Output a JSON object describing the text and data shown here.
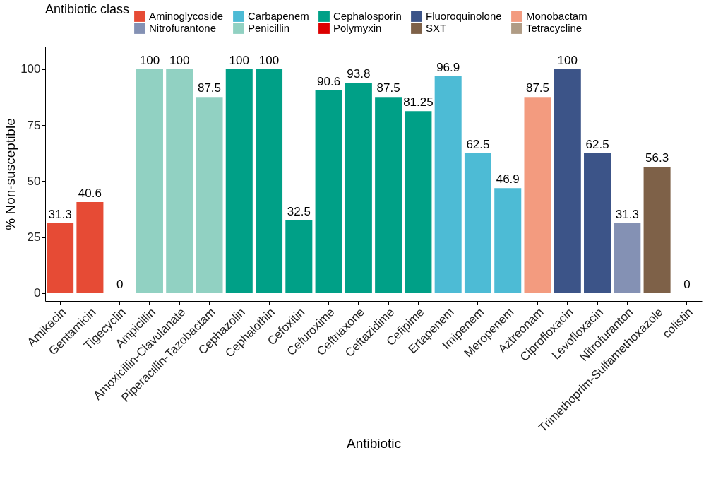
{
  "chart_data": {
    "type": "bar",
    "xlabel": "Antibiotic",
    "ylabel": "% Non-susceptible",
    "legend_title": "Antibiotic class",
    "legend": "top",
    "grid": false,
    "data_labels": true,
    "categories": [
      "Amikacin",
      "Gentamicin",
      "Tigecyclin",
      "Ampicillin",
      "Amoxicillin-Clavulanate",
      "Piperacillin-Tazobactam",
      "Cephazolin",
      "Cephalothin",
      "Cefoxitin",
      "Cefuroxime",
      "Ceftriaxone",
      "Ceftazidime",
      "Cefipime",
      "Ertapenem",
      "Imipenem",
      "Meropenem",
      "Aztreonam",
      "Ciprofloxacin",
      "Levofloxacin",
      "Nitrofuranton",
      "Trimethoprim-Sulfamethoxazole",
      "colistin"
    ],
    "ylim": [
      -3.5,
      110
    ],
    "yticks": [
      0,
      25,
      50,
      75,
      100
    ],
    "series": [
      {
        "name": "Aminoglycoside",
        "color": "#e64b35",
        "values": [
          31.3,
          40.6,
          null,
          null,
          null,
          null,
          null,
          null,
          null,
          null,
          null,
          null,
          null,
          null,
          null,
          null,
          null,
          null,
          null,
          null,
          null,
          null
        ]
      },
      {
        "name": "Carbapenem",
        "color": "#4dbbd5",
        "values": [
          null,
          null,
          null,
          null,
          null,
          null,
          null,
          null,
          null,
          null,
          null,
          null,
          null,
          96.9,
          62.5,
          46.9,
          null,
          null,
          null,
          null,
          null,
          null
        ]
      },
      {
        "name": "Cephalosporin",
        "color": "#00a087",
        "values": [
          null,
          null,
          null,
          null,
          null,
          null,
          100,
          100,
          32.5,
          90.6,
          93.8,
          87.5,
          81.25,
          null,
          null,
          null,
          null,
          null,
          null,
          null,
          null,
          null
        ]
      },
      {
        "name": "Fluoroquinolone",
        "color": "#3c5488",
        "values": [
          null,
          null,
          null,
          null,
          null,
          null,
          null,
          null,
          null,
          null,
          null,
          null,
          null,
          null,
          null,
          null,
          null,
          100,
          62.5,
          null,
          null,
          null
        ]
      },
      {
        "name": "Monobactam",
        "color": "#f39b7f",
        "values": [
          null,
          null,
          null,
          null,
          null,
          null,
          null,
          null,
          null,
          null,
          null,
          null,
          null,
          null,
          null,
          null,
          87.5,
          null,
          null,
          null,
          null,
          null
        ]
      },
      {
        "name": "Nitrofurantone",
        "color": "#8491b4",
        "values": [
          null,
          null,
          null,
          null,
          null,
          null,
          null,
          null,
          null,
          null,
          null,
          null,
          null,
          null,
          null,
          null,
          null,
          null,
          null,
          31.3,
          null,
          null
        ]
      },
      {
        "name": "Penicillin",
        "color": "#91d1c2",
        "values": [
          null,
          null,
          null,
          100,
          100,
          87.5,
          null,
          null,
          null,
          null,
          null,
          null,
          null,
          null,
          null,
          null,
          null,
          null,
          null,
          null,
          null,
          null
        ]
      },
      {
        "name": "Polymyxin",
        "color": "#dc0000",
        "values": [
          null,
          null,
          null,
          null,
          null,
          null,
          null,
          null,
          null,
          null,
          null,
          null,
          null,
          null,
          null,
          null,
          null,
          null,
          null,
          null,
          null,
          0
        ]
      },
      {
        "name": "SXT",
        "color": "#7e6148",
        "values": [
          null,
          null,
          null,
          null,
          null,
          null,
          null,
          null,
          null,
          null,
          null,
          null,
          null,
          null,
          null,
          null,
          null,
          null,
          null,
          null,
          56.3,
          null
        ]
      },
      {
        "name": "Tetracycline",
        "color": "#b09c85",
        "values": [
          null,
          null,
          0,
          null,
          null,
          null,
          null,
          null,
          null,
          null,
          null,
          null,
          null,
          null,
          null,
          null,
          null,
          null,
          null,
          null,
          null,
          null
        ]
      }
    ]
  }
}
